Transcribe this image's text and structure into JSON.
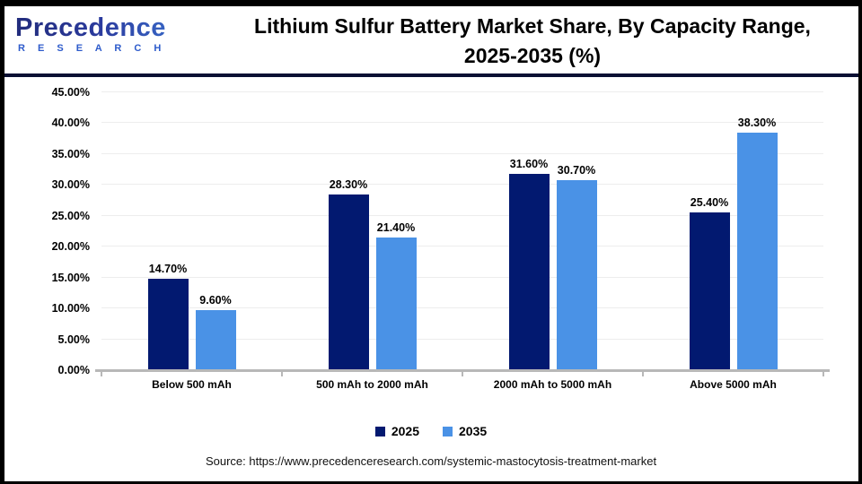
{
  "header": {
    "logo": {
      "word": "Precedence",
      "sub": "R E S E A R C H"
    },
    "title_line1": "Lithium Sulfur Battery Market Share, By Capacity Range,",
    "title_line2": "2025-2035 (%)"
  },
  "chart_data": {
    "type": "bar",
    "title": "Lithium Sulfur Battery Market Share, By Capacity Range, 2025-2035 (%)",
    "categories": [
      "Below 500 mAh",
      "500 mAh to 2000 mAh",
      "2000 mAh to 5000 mAh",
      "Above 5000 mAh"
    ],
    "series": [
      {
        "name": "2025",
        "color": "#021970",
        "values": [
          14.7,
          28.3,
          31.6,
          25.4
        ],
        "labels": [
          "14.70%",
          "28.30%",
          "31.60%",
          "25.40%"
        ]
      },
      {
        "name": "2035",
        "color": "#4A92E6",
        "values": [
          9.6,
          21.4,
          30.7,
          38.3
        ],
        "labels": [
          "9.60%",
          "21.40%",
          "30.70%",
          "38.30%"
        ]
      }
    ],
    "xlabel": "",
    "ylabel": "",
    "ylim": [
      0,
      45
    ],
    "ytick_step": 5,
    "ytick_labels": [
      "0.00%",
      "5.00%",
      "10.00%",
      "15.00%",
      "20.00%",
      "25.00%",
      "30.00%",
      "35.00%",
      "40.00%",
      "45.00%"
    ],
    "grid": true,
    "legend_position": "bottom",
    "axis_line_color": "#B8B8B8",
    "gridline_color": "#EDEDED"
  },
  "footer": {
    "source": "Source: https://www.precedenceresearch.com/systemic-mastocytosis-treatment-market"
  }
}
